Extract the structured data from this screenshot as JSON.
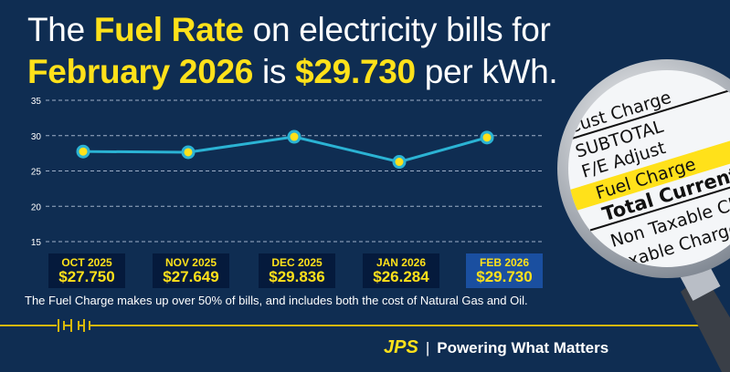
{
  "headline": {
    "line1_pre": "The ",
    "line1_highlight": "Fuel Rate",
    "line1_post": " on electricity bills for",
    "line2_month": "February 2026",
    "line2_mid": " is ",
    "line2_value": "$29.730",
    "line2_post": " per kWh."
  },
  "chart_data": {
    "type": "line",
    "categories": [
      "OCT 2025",
      "NOV 2025",
      "DEC 2025",
      "JAN 2026",
      "FEB 2026"
    ],
    "values": [
      27.75,
      27.649,
      29.836,
      26.284,
      29.73
    ],
    "value_labels": [
      "$27.750",
      "$27.649",
      "$29.836",
      "$26.284",
      "$29.730"
    ],
    "ylim": [
      15,
      35
    ],
    "yticks": [
      35,
      30,
      25,
      20,
      15
    ],
    "grid": true,
    "highlighted_category": "FEB 2026",
    "colors": {
      "line": "#2bb3d4",
      "marker": "#ffe11a",
      "marker_ring": "#2bb3d4",
      "highlight_box": "#1a4fa0",
      "box": "#051a3c",
      "grid": "#9fb0c8"
    }
  },
  "note": "The Fuel Charge makes up over 50% of bills, and includes both the cost of Natural Gas and Oil.",
  "footer": {
    "logo": "JPS",
    "tagline": "Powering What Matters"
  },
  "magnifier_lines": [
    "Cust Charge",
    "SUBTOTAL",
    "F/E Adjust",
    "Fuel Charge",
    "Total Current",
    "Non Taxable Ch",
    "Taxable Charge"
  ],
  "colors": {
    "background": "#0f2d52",
    "accent": "#ffe11a"
  }
}
